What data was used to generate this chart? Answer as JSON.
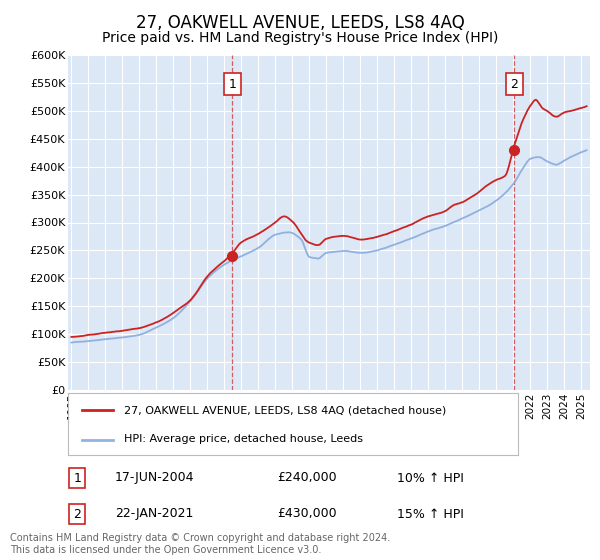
{
  "title": "27, OAKWELL AVENUE, LEEDS, LS8 4AQ",
  "subtitle": "Price paid vs. HM Land Registry's House Price Index (HPI)",
  "title_fontsize": 12,
  "subtitle_fontsize": 10,
  "bg_color": "#dce8f5",
  "grid_color": "#ffffff",
  "red_color": "#cc2222",
  "blue_color": "#88aadd",
  "ylim": [
    0,
    600000
  ],
  "yticks": [
    0,
    50000,
    100000,
    150000,
    200000,
    250000,
    300000,
    350000,
    400000,
    450000,
    500000,
    550000,
    600000
  ],
  "xlim_start": 1994.8,
  "xlim_end": 2025.5,
  "sale1_x": 2004.46,
  "sale1_y": 240000,
  "sale2_x": 2021.05,
  "sale2_y": 430000,
  "sale1_label": "1",
  "sale2_label": "2",
  "legend_line1": "27, OAKWELL AVENUE, LEEDS, LS8 4AQ (detached house)",
  "legend_line2": "HPI: Average price, detached house, Leeds",
  "annot1_date": "17-JUN-2004",
  "annot1_price": "£240,000",
  "annot1_hpi": "10% ↑ HPI",
  "annot2_date": "22-JAN-2021",
  "annot2_price": "£430,000",
  "annot2_hpi": "15% ↑ HPI",
  "footer": "Contains HM Land Registry data © Crown copyright and database right 2024.\nThis data is licensed under the Open Government Licence v3.0."
}
